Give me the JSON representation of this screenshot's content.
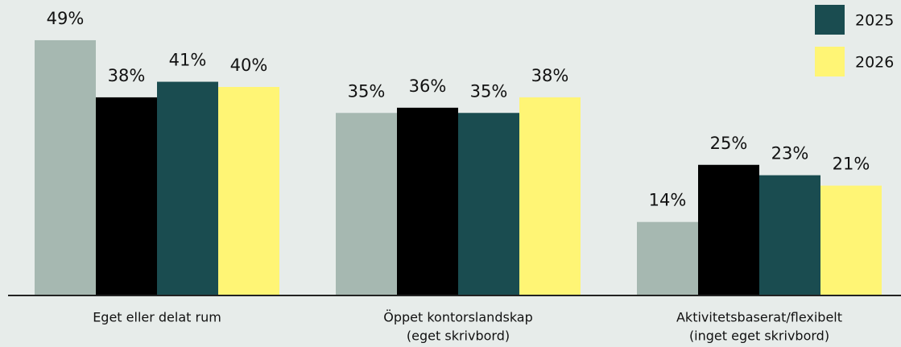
{
  "chart_data": {
    "type": "bar",
    "categories": [
      [
        "Eget eller delat rum"
      ],
      [
        "Öppet kontorslandskap",
        "(eget skrivbord)"
      ],
      [
        "Aktivitetsbaserat/flexibelt",
        "(inget eget skrivbord)"
      ]
    ],
    "series": [
      {
        "color": "#a6b8b1",
        "values": [
          49,
          35,
          14
        ],
        "value_labels": [
          "49%",
          "35%",
          "14%"
        ]
      },
      {
        "color": "#000000",
        "values": [
          38,
          36,
          25
        ],
        "value_labels": [
          "38%",
          "36%",
          "25%"
        ]
      },
      {
        "name": "2025",
        "color": "#1a4c50",
        "values": [
          41,
          35,
          23
        ],
        "value_labels": [
          "41%",
          "35%",
          "23%"
        ]
      },
      {
        "name": "2026",
        "color": "#fff575",
        "values": [
          40,
          38,
          21
        ],
        "value_labels": [
          "40%",
          "38%",
          "21%"
        ]
      }
    ],
    "legend": "top-right"
  }
}
